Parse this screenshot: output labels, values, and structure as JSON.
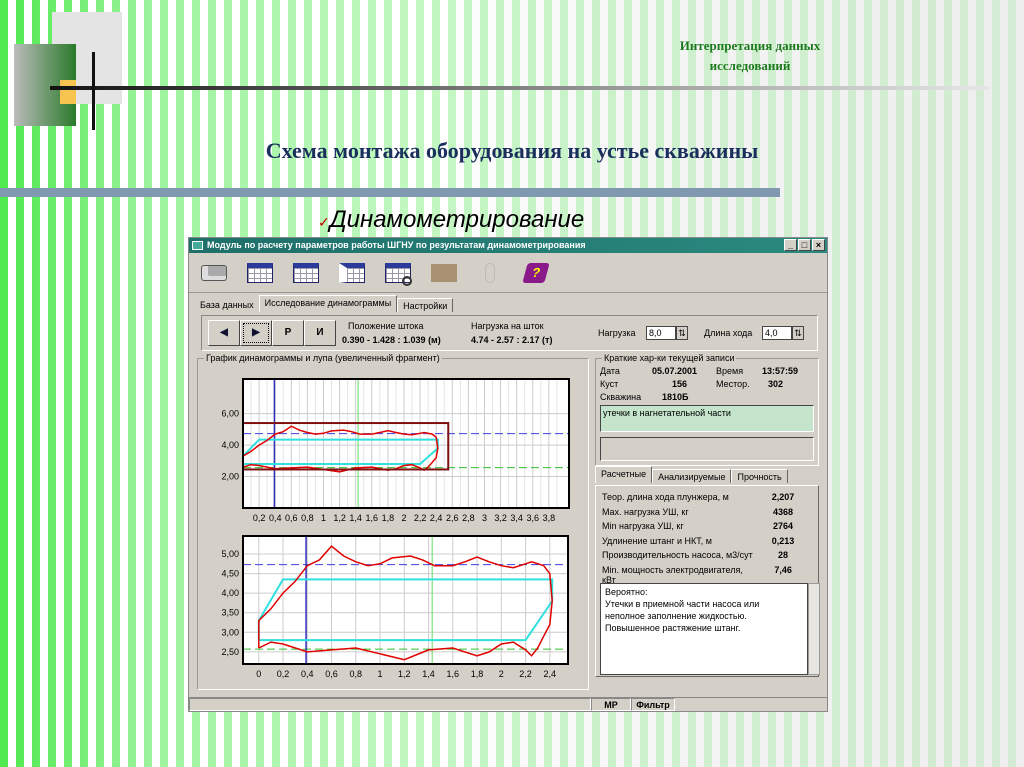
{
  "slide": {
    "subtitle_line1": "Интерпретация данных",
    "subtitle_line2": "исследований",
    "title": "Схема монтажа оборудования на устье скважины",
    "bullet_mark": "✓",
    "bullet": "Динамометрирование",
    "stripe_color": "#4dea4d",
    "title_color": "#1a2f5c"
  },
  "window": {
    "title": "Модуль по расчету параметров работы ШГНУ по результатам динамометрирования",
    "controls": [
      "_",
      "□",
      "×"
    ],
    "titlebar_color": "#1f6f6a",
    "toolbar": [
      "printer-icon",
      "import-table-icon",
      "export-table-icon",
      "table-select-icon",
      "table-zoom-icon",
      "disabled-box-icon",
      "footprint-icon",
      "help-book-icon"
    ],
    "tabs": [
      {
        "label": "База данных"
      },
      {
        "label": "Исследование динамограммы",
        "active": true
      },
      {
        "label": "Настройки"
      }
    ],
    "nav": {
      "prev": "◆",
      "next": "◆",
      "p": "Р",
      "i": "И"
    },
    "rod_position": {
      "label": "Положение штока",
      "value": "0.390 - 1.428 : 1.039 (м)"
    },
    "rod_load": {
      "label": "Нагрузка на шток",
      "value": "4.74 - 2.57 : 2.17 (т)"
    },
    "load": {
      "label": "Нагрузка",
      "value": "8,0"
    },
    "stroke": {
      "label": "Длина хода",
      "value": "4,0"
    },
    "chart_group": "График динамограммы и лупа (увеличенный фрагмент)",
    "record": {
      "caption": "Краткие хар-ки текущей записи",
      "date_label": "Дата",
      "date": "05.07.2001",
      "time_label": "Время",
      "time": "13:57:59",
      "cluster_label": "Куст",
      "cluster": "156",
      "field_label": "Местор.",
      "field": "302",
      "well_label": "Скважина",
      "well": "1810Б",
      "note": "утечки в нагнетательной части",
      "note2": ""
    },
    "subtabs": [
      {
        "label": "Расчетные",
        "active": true
      },
      {
        "label": "Анализируемые"
      },
      {
        "label": "Прочность"
      }
    ],
    "params": [
      {
        "label": "Теор. длина хода плунжера, м",
        "value": "2,207"
      },
      {
        "label": "Max. нагрузка УШ, кг",
        "value": "4368"
      },
      {
        "label": "Min нагрузка УШ, кг",
        "value": "2764"
      },
      {
        "label": "Удлинение штанг и НКТ, м",
        "value": "0,213"
      },
      {
        "label": "Производительность насоса, м3/сут",
        "value": "28"
      },
      {
        "label": "Min. мощность электродвигателя, кВт",
        "value": "7,46"
      }
    ],
    "conclusion": [
      "Вероятно:",
      "Утечки в приемной части насоса или",
      "неполное заполнение жидкостью.",
      "Повышенное растяжение штанг."
    ],
    "status": [
      "",
      "МР",
      "Фильтр"
    ]
  },
  "chart_data": [
    {
      "type": "line",
      "xlim": [
        0,
        4.05
      ],
      "ylim": [
        0,
        8.2
      ],
      "grid": true,
      "xticks": [
        "0,2",
        "0,4",
        "0,6",
        "0,8",
        "1",
        "1,2",
        "1,4",
        "1,6",
        "1,8",
        "2",
        "2,2",
        "2,4",
        "2,6",
        "2,8",
        "3",
        "3,2",
        "3,4",
        "3,6",
        "3,8"
      ],
      "yticks": [
        "2,00",
        "4,00",
        "6,00"
      ],
      "zoom_box": {
        "x": [
          0,
          2.55
        ],
        "y": [
          2.45,
          5.4
        ]
      }
    },
    {
      "type": "line",
      "xlim": [
        -0.13,
        2.55
      ],
      "ylim": [
        2.19,
        5.46
      ],
      "grid": true,
      "xticks": [
        "0",
        "0,2",
        "0,4",
        "0,6",
        "0,8",
        "1",
        "1,2",
        "1,4",
        "1,6",
        "1,8",
        "2",
        "2,2",
        "2,4"
      ],
      "yticks": [
        "2,50",
        "3,00",
        "3,50",
        "4,00",
        "4,50",
        "5,00"
      ]
    }
  ],
  "dynamogram": {
    "actual": {
      "color": "#e00000",
      "points": [
        [
          0,
          2.6
        ],
        [
          0,
          3.3
        ],
        [
          0.1,
          3.6
        ],
        [
          0.2,
          4.0
        ],
        [
          0.3,
          4.3
        ],
        [
          0.4,
          4.7
        ],
        [
          0.5,
          4.85
        ],
        [
          0.6,
          5.2
        ],
        [
          0.7,
          4.95
        ],
        [
          0.8,
          4.8
        ],
        [
          0.9,
          4.7
        ],
        [
          1.0,
          4.75
        ],
        [
          1.1,
          4.9
        ],
        [
          1.25,
          4.95
        ],
        [
          1.35,
          4.85
        ],
        [
          1.45,
          4.7
        ],
        [
          1.6,
          4.7
        ],
        [
          1.7,
          4.8
        ],
        [
          1.8,
          4.92
        ],
        [
          1.9,
          4.8
        ],
        [
          2.0,
          4.7
        ],
        [
          2.1,
          4.65
        ],
        [
          2.2,
          4.75
        ],
        [
          2.25,
          4.8
        ],
        [
          2.35,
          4.7
        ],
        [
          2.4,
          4.5
        ],
        [
          2.42,
          3.8
        ],
        [
          2.4,
          3.2
        ],
        [
          2.35,
          2.9
        ],
        [
          2.3,
          2.6
        ],
        [
          2.25,
          2.4
        ],
        [
          2.2,
          2.55
        ],
        [
          2.1,
          2.75
        ],
        [
          2.0,
          2.7
        ],
        [
          1.9,
          2.5
        ],
        [
          1.8,
          2.4
        ],
        [
          1.6,
          2.6
        ],
        [
          1.4,
          2.55
        ],
        [
          1.2,
          2.3
        ],
        [
          1.0,
          2.45
        ],
        [
          0.8,
          2.6
        ],
        [
          0.6,
          2.55
        ],
        [
          0.4,
          2.5
        ],
        [
          0.2,
          2.7
        ],
        [
          0.1,
          2.75
        ],
        [
          0,
          2.6
        ]
      ]
    },
    "theoretical": {
      "color": "#30e0e0",
      "points": [
        [
          0,
          2.8
        ],
        [
          0,
          3.3
        ],
        [
          0.2,
          4.35
        ],
        [
          2.42,
          4.35
        ],
        [
          2.42,
          3.8
        ],
        [
          2.2,
          2.8
        ],
        [
          0,
          2.8
        ]
      ]
    },
    "max_load": 4.73,
    "min_load": 2.57,
    "pos_start": 0.39,
    "pos_end": 1.43
  }
}
